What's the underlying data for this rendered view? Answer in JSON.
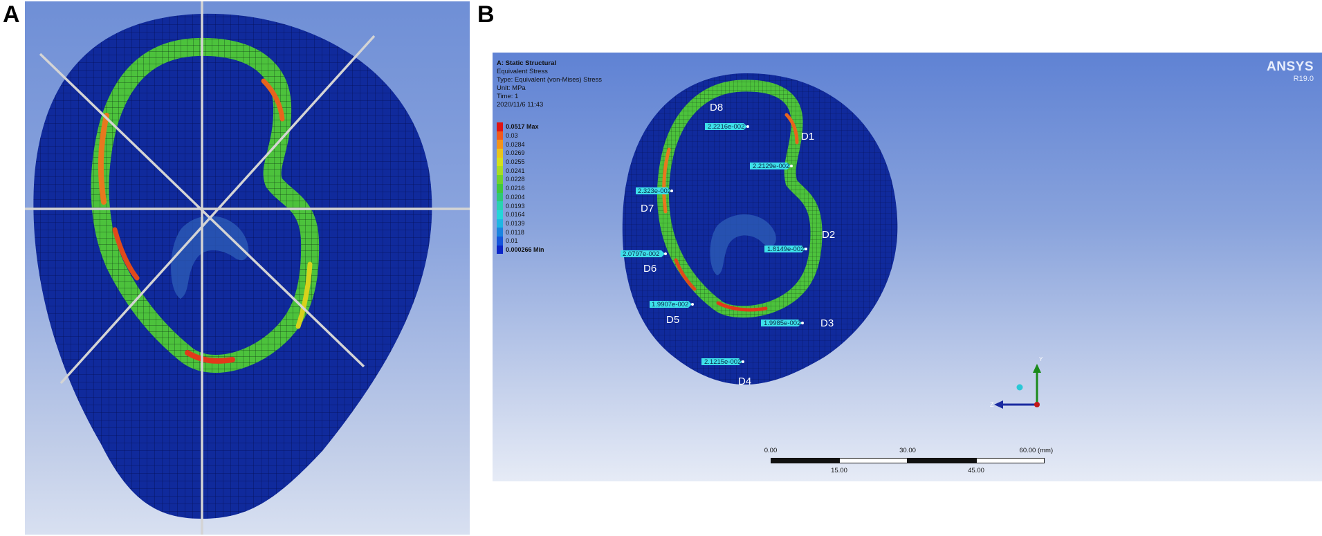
{
  "panels": {
    "a": {
      "letter": "A"
    },
    "b": {
      "letter": "B"
    }
  },
  "result_header": {
    "title": "A: Static Structural",
    "line1": "Equivalent Stress",
    "line2": "Type: Equivalent (von-Mises) Stress",
    "line3": "Unit: MPa",
    "line4": "Time: 1",
    "line5": "2020/11/6 11:43"
  },
  "legend": {
    "levels": [
      {
        "label": "0.0517 Max",
        "color": "#e01414"
      },
      {
        "label": "0.03",
        "color": "#f05a1e"
      },
      {
        "label": "0.0284",
        "color": "#f2931c"
      },
      {
        "label": "0.0269",
        "color": "#e8c41e"
      },
      {
        "label": "0.0255",
        "color": "#d4e01c"
      },
      {
        "label": "0.0241",
        "color": "#a8dc24"
      },
      {
        "label": "0.0228",
        "color": "#6fd22e"
      },
      {
        "label": "0.0216",
        "color": "#3ec83e"
      },
      {
        "label": "0.0204",
        "color": "#2ec878"
      },
      {
        "label": "0.0193",
        "color": "#2ad2b2"
      },
      {
        "label": "0.0164",
        "color": "#24d6da"
      },
      {
        "label": "0.0139",
        "color": "#1eb6e4"
      },
      {
        "label": "0.0118",
        "color": "#1a84e0"
      },
      {
        "label": "0.01",
        "color": "#1454dc"
      },
      {
        "label": "0.000266 Min",
        "color": "#0a24c8"
      }
    ]
  },
  "software": {
    "name": "ANSYS",
    "version": "R19.0"
  },
  "regions": [
    "D1",
    "D2",
    "D3",
    "D4",
    "D5",
    "D6",
    "D7",
    "D8"
  ],
  "probes": [
    {
      "region": "D8",
      "value": "2.2216e-002"
    },
    {
      "region": "D1",
      "value": "2.2129e-002"
    },
    {
      "region": "D7",
      "value": "2.323e-002"
    },
    {
      "region": "D2",
      "value": "1.8149e-002"
    },
    {
      "region": "D6",
      "value": "2.0797e-002"
    },
    {
      "region": "D5",
      "value": "1.9907e-002"
    },
    {
      "region": "D3",
      "value": "1.9985e-002"
    },
    {
      "region": "D4",
      "value": "2.1215e-002"
    }
  ],
  "scale_bar": {
    "top_ticks": [
      "0.00",
      "30.00",
      "60.00 (mm)"
    ],
    "bottom_ticks": [
      "15.00",
      "45.00"
    ]
  },
  "triad": {
    "y": "Y",
    "z": "Z"
  },
  "colors": {
    "mesh_blue": "#102a9c",
    "band_green": "#4cc23c",
    "probe_cyan": "#3ee0ea",
    "guide_line": "#d4d4d4"
  }
}
